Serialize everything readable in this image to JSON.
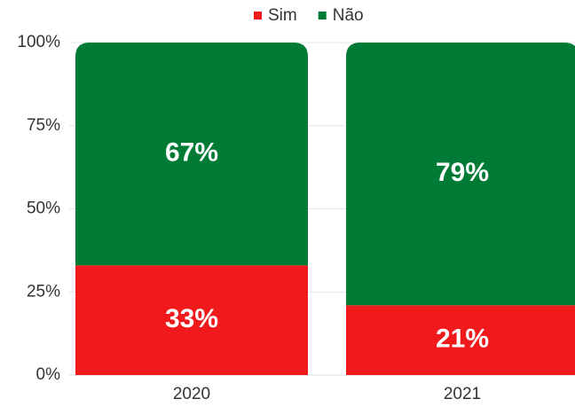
{
  "chart_data": {
    "type": "bar",
    "stacked": true,
    "categories": [
      "2020",
      "2021"
    ],
    "series": [
      {
        "name": "Sim",
        "color": "#f01a1d",
        "values": [
          33,
          21
        ],
        "value_labels": [
          "33%",
          "21%"
        ]
      },
      {
        "name": "Não",
        "color": "#007b35",
        "values": [
          67,
          79
        ],
        "value_labels": [
          "67%",
          "79%"
        ]
      }
    ],
    "ylim": [
      0,
      100
    ],
    "yticks": [
      {
        "value": 0,
        "label": "0%"
      },
      {
        "value": 25,
        "label": "25%"
      },
      {
        "value": 50,
        "label": "50%"
      },
      {
        "value": 75,
        "label": "75%"
      },
      {
        "value": 100,
        "label": "100%"
      }
    ],
    "grid": true,
    "legend": "top"
  }
}
